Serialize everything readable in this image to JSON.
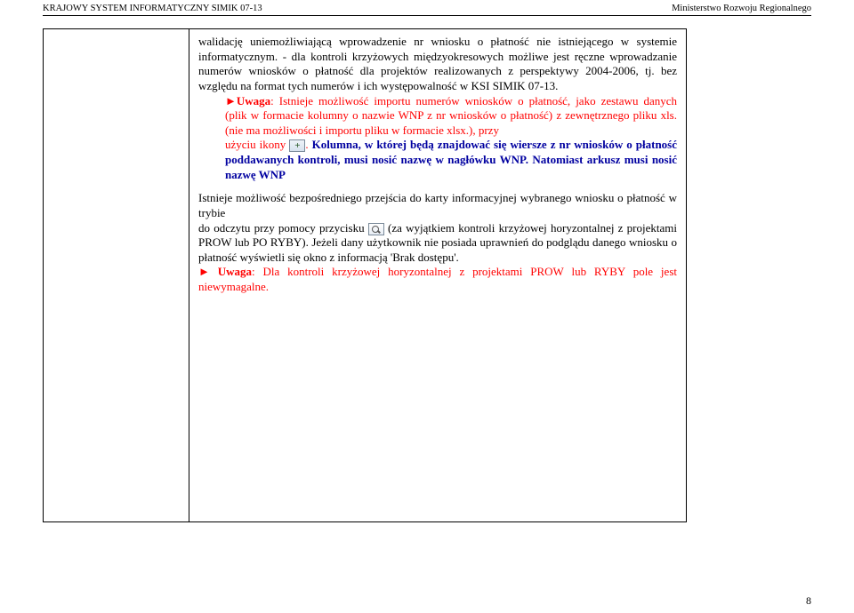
{
  "header": {
    "left": "KRAJOWY SYSTEM INFORMATYCZNY SIMIK 07-13",
    "right": "Ministerstwo Rozwoju Regionalnego"
  },
  "body": {
    "p1": "walidację uniemożliwiającą wprowadzenie nr wniosku o płatność nie istniejącego w systemie informatycznym. - dla kontroli krzyżowych międzyokresowych możliwe jest ręczne wprowadzanie numerów wniosków o płatność dla projektów realizowanych z perspektywy 2004-2006, tj. bez względu na format tych numerów i ich występowalność w KSI SIMIK 07-13.",
    "uwaga1_prefix": "►Uwaga",
    "uwaga1_a": ": Istnieje możliwość importu numerów wniosków o płatność, jako zestawu danych (plik w formacie kolumny o nazwie WNP z nr wniosków o płatność) z zewnętrznego pliku xls. (nie ma możliwości i importu pliku w formacie xlsx.), przy",
    "uwaga1_b": "użyciu  ikony ",
    "uwaga1_c": ". ",
    "bold_blue": "Kolumna, w której będą znajdować się wiersze z nr wniosków o płatność poddawanych kontroli, musi nosić nazwę w nagłówku WNP. Natomiast arkusz musi nosić nazwę WNP",
    "p2a": "Istnieje możliwość bezpośredniego przejścia do karty informacyjnej wybranego wniosku o płatność w trybie",
    "p2b": "do odczytu  przy  pomocy  przycisku ",
    "p2c": " (za wyjątkiem kontroli krzyżowej horyzontalnej z projektami PROW lub PO RYBY). Jeżeli dany użytkownik nie posiada uprawnień do podglądu danego wniosku o płatność wyświetli się okno z informacją 'Brak dostępu'.",
    "uwaga2_prefix": "► Uwaga",
    "uwaga2_rest": ": Dla kontroli krzyżowej horyzontalnej z projektami PROW lub RYBY pole jest niewymagalne."
  },
  "page_number": "8"
}
